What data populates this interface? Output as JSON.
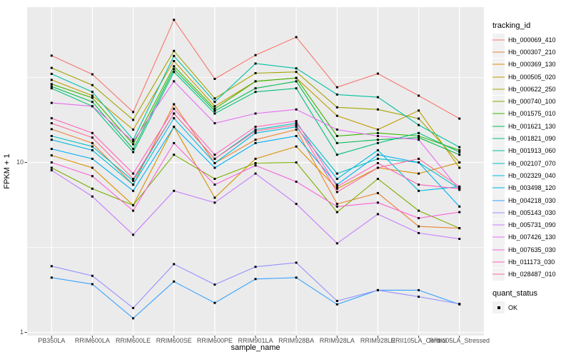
{
  "figure": {
    "y_axis_title": "FPKM + 1",
    "x_axis_title": "sample_name",
    "colors": {
      "panel_bg": "#EBEBEB",
      "grid": "#FFFFFF",
      "marker": "#000000",
      "axis_text": "#4D4D4D",
      "tick": "#333333",
      "legend_key_bg": "#F2F2F2"
    }
  },
  "legend": {
    "color_title": "tracking_id",
    "shape_title": "quant_status",
    "shape_items": [
      "OK"
    ]
  },
  "chart_data": {
    "type": "line",
    "title": "",
    "xlabel": "sample_name",
    "ylabel": "FPKM + 1",
    "y_scale": "log10",
    "ylim": [
      0.957,
      82
    ],
    "y_major": [
      1,
      10
    ],
    "y_minor": [
      3.162,
      31.62
    ],
    "y_tick_labels": [
      "1",
      "10"
    ],
    "legend_position": "right",
    "grid": true,
    "categories": [
      "PB350LA",
      "RRIM600LA",
      "RRIM600LE",
      "RRIM600SE",
      "RRIM600PE",
      "RRIM901LA",
      "RRIM928BA",
      "RRIM928LA",
      "RRIM928LE",
      "RRII105LA_Control",
      "RRII105LA_Stressed"
    ],
    "series": [
      {
        "name": "Hb_000069_410",
        "color": "#F8766D",
        "values": [
          42.5,
          33.0,
          19.8,
          69.0,
          31.0,
          42.8,
          54.6,
          27.7,
          33.3,
          24.7,
          18.1
        ]
      },
      {
        "name": "Hb_000307_210",
        "color": "#EA8331",
        "values": [
          15.7,
          13.0,
          7.4,
          22.0,
          9.9,
          13.6,
          15.6,
          5.7,
          6.6,
          4.2,
          4.1
        ]
      },
      {
        "name": "Hb_000369_130",
        "color": "#D89000",
        "values": [
          11.0,
          9.3,
          5.6,
          16.2,
          6.2,
          10.5,
          12.4,
          7.0,
          9.3,
          8.6,
          10.0
        ]
      },
      {
        "name": "Hb_000505_020",
        "color": "#C09B00",
        "values": [
          30.6,
          24.7,
          15.6,
          39.5,
          21.4,
          30.0,
          31.4,
          18.8,
          15.6,
          20.2,
          9.3
        ]
      },
      {
        "name": "Hb_000622_250",
        "color": "#A3A500",
        "values": [
          36.0,
          28.5,
          17.8,
          45.3,
          23.8,
          33.5,
          34.1,
          21.1,
          20.5,
          18.1,
          10.0
        ]
      },
      {
        "name": "Hb_000740_100",
        "color": "#7CAE00",
        "values": [
          9.3,
          7.0,
          5.6,
          11.1,
          8.0,
          9.9,
          10.0,
          5.1,
          8.0,
          5.2,
          4.1
        ]
      },
      {
        "name": "Hb_001575_010",
        "color": "#39B600",
        "values": [
          28.9,
          24.0,
          12.8,
          36.8,
          20.7,
          30.0,
          31.4,
          14.3,
          14.9,
          14.3,
          11.8
        ]
      },
      {
        "name": "Hb_001621_130",
        "color": "#00BB4E",
        "values": [
          28.0,
          22.7,
          12.0,
          35.4,
          20.1,
          27.3,
          30.0,
          13.0,
          13.6,
          14.0,
          11.1
        ]
      },
      {
        "name": "Hb_001821_090",
        "color": "#00BF7D",
        "values": [
          27.3,
          21.4,
          11.5,
          34.1,
          19.4,
          26.0,
          27.3,
          11.1,
          13.0,
          14.9,
          11.5
        ]
      },
      {
        "name": "Hb_001913_060",
        "color": "#00C1A3",
        "values": [
          33.2,
          26.0,
          13.6,
          42.3,
          22.7,
          38.2,
          35.8,
          25.1,
          24.2,
          16.6,
          12.3
        ]
      },
      {
        "name": "Hb_002107_070",
        "color": "#00BFC4",
        "values": [
          14.3,
          12.4,
          7.8,
          19.4,
          10.5,
          15.6,
          17.0,
          8.6,
          10.5,
          10.0,
          7.0
        ]
      },
      {
        "name": "Hb_002329_040",
        "color": "#00BAE0",
        "values": [
          13.6,
          11.8,
          7.4,
          18.2,
          9.9,
          14.9,
          16.2,
          8.0,
          11.8,
          6.8,
          7.2
        ]
      },
      {
        "name": "Hb_003498_120",
        "color": "#00B0F6",
        "values": [
          12.0,
          10.5,
          6.8,
          16.2,
          9.3,
          13.0,
          14.3,
          7.4,
          11.1,
          10.0,
          5.5
        ]
      },
      {
        "name": "Hb_004218_030",
        "color": "#35A2FF",
        "values": [
          2.1,
          1.92,
          1.21,
          1.99,
          1.49,
          2.06,
          2.1,
          1.46,
          1.77,
          1.77,
          1.46
        ]
      },
      {
        "name": "Hb_005143_030",
        "color": "#9590FF",
        "values": [
          2.45,
          2.15,
          1.39,
          2.52,
          1.91,
          2.43,
          2.57,
          1.53,
          1.77,
          1.62,
          1.47
        ]
      },
      {
        "name": "Hb_005731_090",
        "color": "#C77CFF",
        "values": [
          9.0,
          6.3,
          3.75,
          6.8,
          5.8,
          8.6,
          5.7,
          3.34,
          4.96,
          3.84,
          3.55
        ]
      },
      {
        "name": "Hb_007426_130",
        "color": "#E76BF3",
        "values": [
          22.4,
          21.4,
          13.3,
          30.0,
          17.0,
          19.4,
          20.5,
          15.6,
          14.3,
          13.6,
          6.9
        ]
      },
      {
        "name": "Hb_007635_030",
        "color": "#FA62DB",
        "values": [
          10.0,
          8.3,
          5.2,
          13.0,
          7.4,
          9.6,
          7.7,
          5.5,
          5.8,
          4.7,
          5.1
        ]
      },
      {
        "name": "Hb_011173_030",
        "color": "#FF62BC",
        "values": [
          18.2,
          14.9,
          8.6,
          20.7,
          11.1,
          16.2,
          17.5,
          7.2,
          9.9,
          7.4,
          7.0
        ]
      },
      {
        "name": "Hb_028487_010",
        "color": "#FF6A98",
        "values": [
          17.0,
          14.0,
          8.0,
          19.4,
          10.5,
          15.3,
          16.6,
          6.7,
          9.3,
          10.5,
          7.2
        ]
      }
    ]
  }
}
